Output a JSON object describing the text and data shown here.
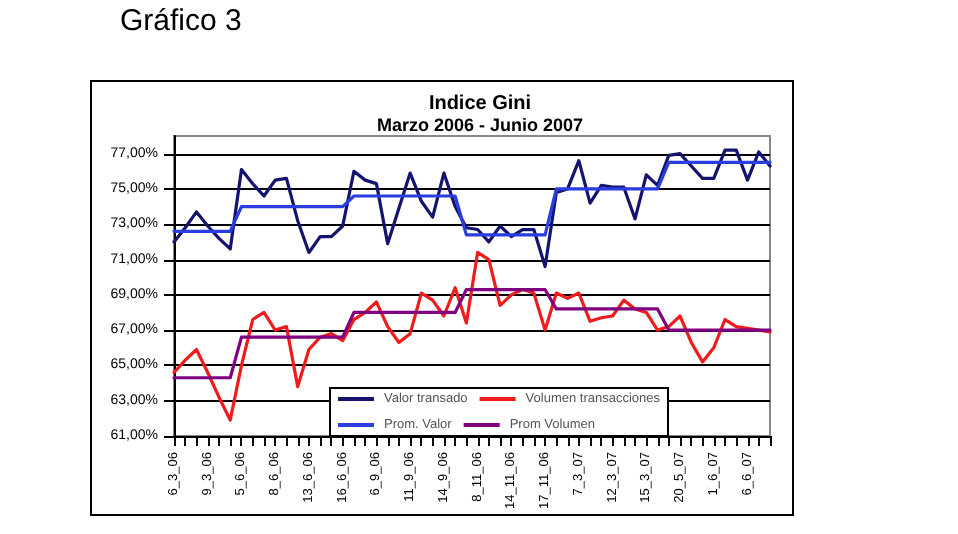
{
  "chart_data": {
    "type": "line",
    "title": "Indice Gini",
    "subtitle": "Marzo 2006 - Junio 2007",
    "annotations": [
      "Gráfico 3"
    ],
    "categories": [
      "6_3_06",
      null,
      null,
      "9_3_06",
      null,
      null,
      "5_6_06",
      null,
      null,
      "8_6_06",
      null,
      null,
      "13_6_06",
      null,
      null,
      "16_6_06",
      null,
      null,
      "6_9_06",
      null,
      null,
      "11_9_06",
      null,
      null,
      "14_9_06",
      null,
      null,
      "8_11_06",
      null,
      null,
      "14_11_06",
      null,
      null,
      "17_11_06",
      null,
      null,
      "7_3_07",
      null,
      null,
      "12_3_07",
      null,
      null,
      "15_3_07",
      null,
      null,
      "20_5_07",
      null,
      null,
      "1_6_07",
      null,
      null,
      "6_6_07",
      null,
      null
    ],
    "series": [
      {
        "name": "Valor transado",
        "color": "#14146e",
        "values": [
          72.0,
          72.8,
          73.7,
          72.9,
          72.2,
          71.6,
          76.1,
          75.3,
          74.6,
          75.5,
          75.6,
          73.2,
          71.4,
          72.3,
          72.3,
          72.9,
          76.0,
          75.5,
          75.3,
          71.9,
          73.9,
          75.9,
          74.3,
          73.4,
          75.9,
          74.0,
          72.8,
          72.7,
          72.0,
          72.9,
          72.3,
          72.7,
          72.7,
          70.6,
          74.8,
          75.0,
          76.6,
          74.2,
          75.2,
          75.1,
          75.1,
          73.3,
          75.8,
          75.2,
          76.9,
          77.0,
          76.3,
          75.6,
          75.6,
          77.2,
          77.2,
          75.5,
          77.1,
          76.3
        ]
      },
      {
        "name": "Volumen transacciones",
        "color": "#ee1c1c",
        "values": [
          64.6,
          65.3,
          65.9,
          64.6,
          63.2,
          61.9,
          65.0,
          67.6,
          68.0,
          67.0,
          67.2,
          63.8,
          65.9,
          66.6,
          66.8,
          66.4,
          67.6,
          68.0,
          68.6,
          67.2,
          66.3,
          66.8,
          69.1,
          68.7,
          67.8,
          69.4,
          67.4,
          71.4,
          71.0,
          68.4,
          69.0,
          69.3,
          69.1,
          67.0,
          69.1,
          68.8,
          69.1,
          67.5,
          67.7,
          67.8,
          68.7,
          68.2,
          68.0,
          67.0,
          67.2,
          67.8,
          66.3,
          65.2,
          66.0,
          67.6,
          67.2,
          67.1,
          67.0,
          66.9
        ]
      },
      {
        "name": "Prom. Valor",
        "color": "#2a3ee0",
        "values": [
          72.6,
          72.6,
          72.6,
          72.6,
          72.6,
          72.6,
          74.0,
          74.0,
          74.0,
          74.0,
          74.0,
          74.0,
          74.0,
          74.0,
          74.0,
          74.0,
          74.6,
          74.6,
          74.6,
          74.6,
          74.6,
          74.6,
          74.6,
          74.6,
          74.6,
          74.6,
          72.4,
          72.4,
          72.4,
          72.4,
          72.4,
          72.4,
          72.4,
          72.4,
          75.0,
          75.0,
          75.0,
          75.0,
          75.0,
          75.0,
          75.0,
          75.0,
          75.0,
          75.0,
          76.5,
          76.5,
          76.5,
          76.5,
          76.5,
          76.5,
          76.5,
          76.5,
          76.5,
          76.5
        ]
      },
      {
        "name": "Prom Volumen",
        "color": "#800080",
        "values": [
          64.3,
          64.3,
          64.3,
          64.3,
          64.3,
          64.3,
          66.6,
          66.6,
          66.6,
          66.6,
          66.6,
          66.6,
          66.6,
          66.6,
          66.6,
          66.6,
          68.0,
          68.0,
          68.0,
          68.0,
          68.0,
          68.0,
          68.0,
          68.0,
          68.0,
          68.0,
          69.3,
          69.3,
          69.3,
          69.3,
          69.3,
          69.3,
          69.3,
          69.3,
          68.2,
          68.2,
          68.2,
          68.2,
          68.2,
          68.2,
          68.2,
          68.2,
          68.2,
          68.2,
          67.0,
          67.0,
          67.0,
          67.0,
          67.0,
          67.0,
          67.0,
          67.0,
          67.0,
          67.0
        ]
      }
    ],
    "ylim": [
      61,
      78
    ],
    "yticks": [
      {
        "value": 61,
        "label": "61,00%"
      },
      {
        "value": 63,
        "label": "63,00%"
      },
      {
        "value": 65,
        "label": "65,00%"
      },
      {
        "value": 67,
        "label": "67,00%"
      },
      {
        "value": 69,
        "label": "69,00%"
      },
      {
        "value": 71,
        "label": "71,00%"
      },
      {
        "value": 73,
        "label": "73,00%"
      },
      {
        "value": 75,
        "label": "75,00%"
      },
      {
        "value": 77,
        "label": "77,00%"
      }
    ],
    "grid": "y",
    "legend": "bottom",
    "marker": "none",
    "line_style": "solid"
  }
}
